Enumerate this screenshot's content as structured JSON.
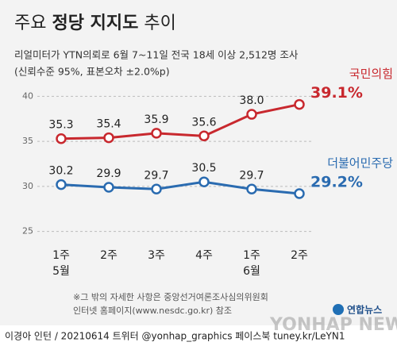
{
  "chart_data": {
    "type": "line",
    "title_parts": [
      "주요",
      "정당 지지도",
      "추이"
    ],
    "subtitle": [
      "리얼미터가 YTN의뢰로 6월 7~11일 전국 18세 이상 2,512명 조사",
      "(신뢰수준 95%, 표본오차 ±2.0%p)"
    ],
    "categories": [
      "1주",
      "2주",
      "3주",
      "4주",
      "1주",
      "2주"
    ],
    "month_labels": [
      "5월",
      null,
      null,
      null,
      "6월",
      null
    ],
    "series": [
      {
        "name": "국민의힘",
        "color": "#c8282e",
        "values": [
          35.3,
          35.4,
          35.9,
          35.6,
          38.0,
          39.1
        ],
        "value_labels": [
          "35.3",
          "35.4",
          "35.9",
          "35.6",
          "38.0",
          "39.1%"
        ]
      },
      {
        "name": "더불어민주당",
        "color": "#2a6bb0",
        "values": [
          30.2,
          29.9,
          29.7,
          30.5,
          29.7,
          29.2
        ],
        "value_labels": [
          "30.2",
          "29.9",
          "29.7",
          "30.5",
          "29.7",
          "29.2%"
        ]
      }
    ],
    "ylim": [
      24,
      41
    ],
    "yticks": [
      25,
      30,
      35,
      40
    ],
    "grid": true,
    "footnote": [
      "※그 밖의 자세한 사항은 중앙선거여론조사심의위원회",
      "인터넷 홈페이지(www.nesdc.go.kr) 참조"
    ],
    "credit": "이경아  인턴 / 20210614 트위터 @yonhap_graphics  페이스북 tuney.kr/LeYN1",
    "logo": "연합뉴스",
    "watermark": "YONHAP NEWS"
  }
}
